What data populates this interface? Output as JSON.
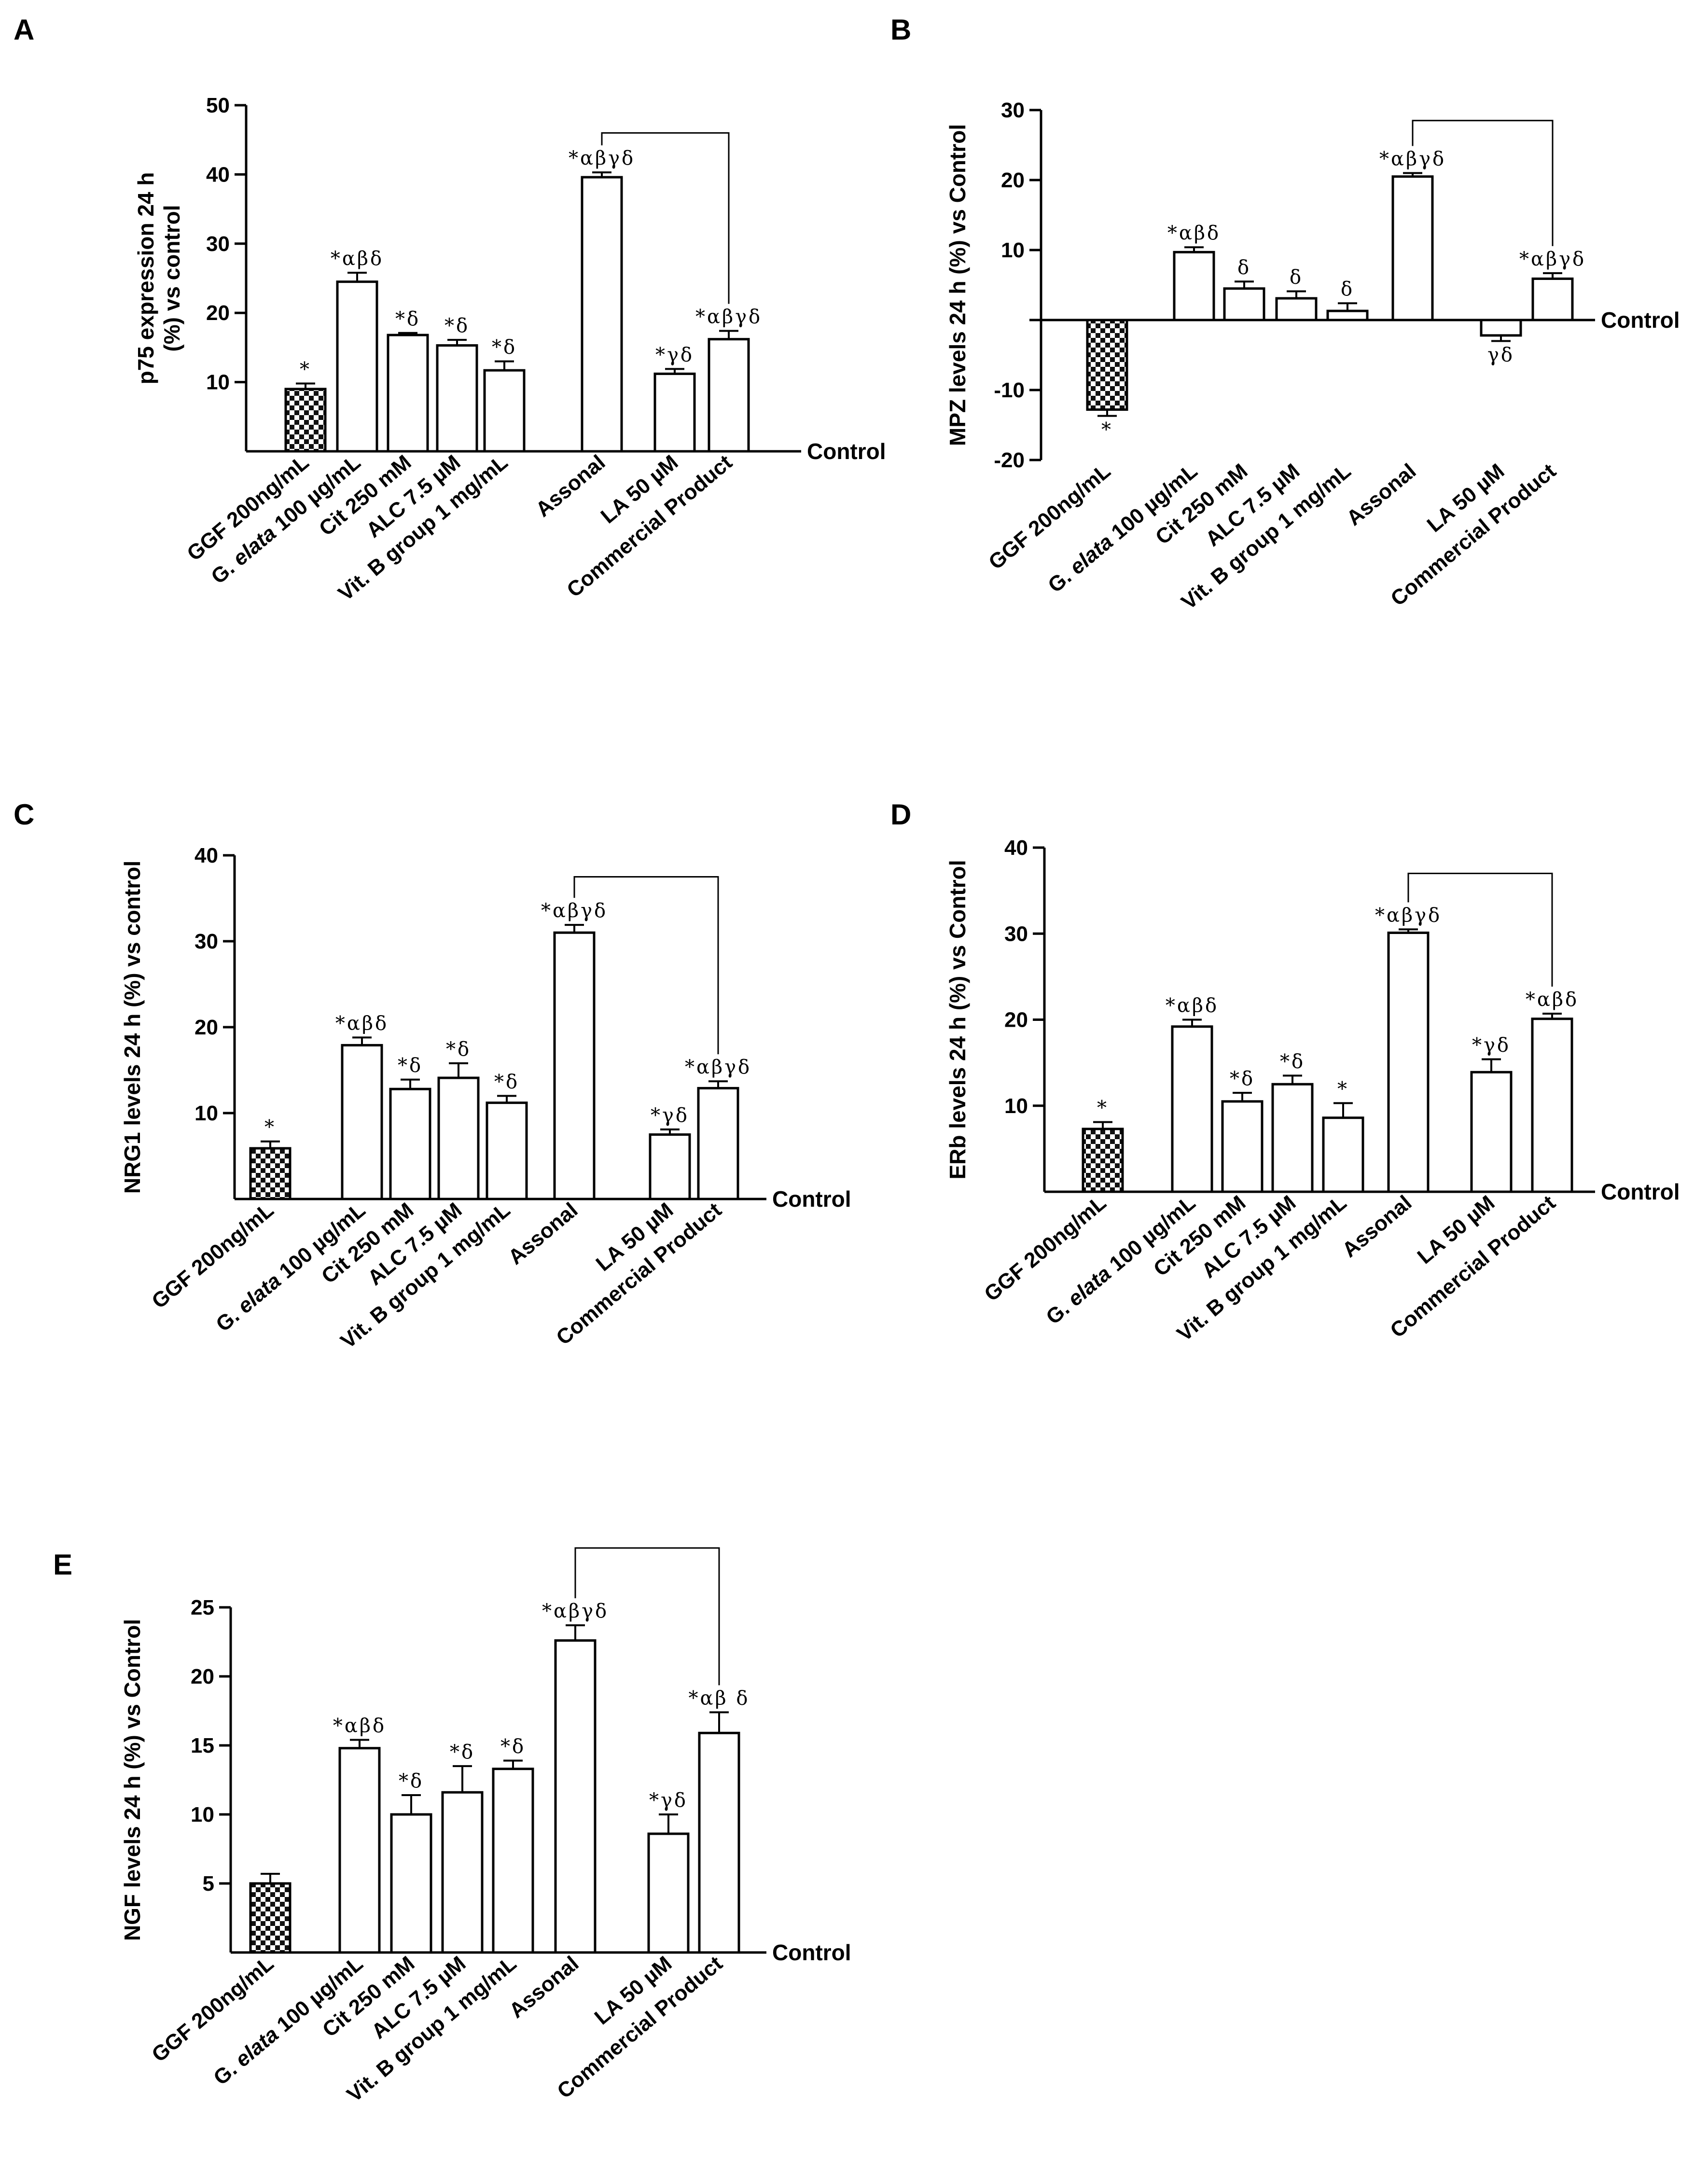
{
  "figure": {
    "colors": {
      "stroke": "#000000",
      "fill": "#ffffff",
      "checker_dark": "#111111",
      "checker_light": "#ffffff"
    },
    "baseline_label": "Control",
    "category_labels": [
      [
        "GGF 200ng/mL"
      ],
      [
        "G. ",
        "elata",
        " 100 µg/mL"
      ],
      [
        "Cit 250 mM"
      ],
      [
        "ALC 7.5 µM"
      ],
      [
        "Vit. B group 1 mg/mL"
      ],
      [
        "Assonal"
      ],
      [
        "LA 50 µM"
      ],
      [
        "Commercial Product"
      ]
    ]
  },
  "chart_data": [
    {
      "panel": "A",
      "type": "bar",
      "ylabel": [
        "p75 expression 24 h",
        "(%) vs control"
      ],
      "ylim": [
        0,
        50
      ],
      "yticks": [
        10,
        20,
        30,
        40,
        50
      ],
      "tick_labels": [
        "10",
        "20",
        "30",
        "40",
        "50"
      ],
      "categories": [
        "GGF 200ng/mL",
        "G. elata 100 µg/mL",
        "Cit 250 mM",
        "ALC 7.5 µM",
        "Vit. B group 1 mg/mL",
        "Assonal",
        "LA 50 µM",
        "Commercial Product"
      ],
      "values": [
        9,
        24.5,
        16.8,
        15.3,
        11.7,
        39.6,
        11.2,
        16.2
      ],
      "errors": [
        0.8,
        1.3,
        0.3,
        0.8,
        1.3,
        0.7,
        0.7,
        1.2
      ],
      "annotations": [
        "*",
        "*αβδ",
        "*δ",
        "*δ",
        "*δ",
        "*αβγδ",
        "*γδ",
        "*αβγδ"
      ],
      "bracket": [
        5,
        7
      ],
      "bracket_top": 46
    },
    {
      "panel": "B",
      "type": "bar",
      "ylabel": [
        "MPZ levels 24 h (%) vs Control"
      ],
      "ylim": [
        -20,
        30
      ],
      "yticks": [
        -20,
        -10,
        0,
        10,
        20,
        30
      ],
      "tick_labels": [
        "-20",
        "-10",
        "",
        "10",
        "20",
        "30"
      ],
      "categories": [
        "GGF 200ng/mL",
        "G. elata 100 µg/mL",
        "Cit 250 mM",
        "ALC 7.5 µM",
        "Vit. B group 1 mg/mL",
        "Assonal",
        "LA 50 µM",
        "Commercial Product"
      ],
      "values": [
        -12.8,
        9.7,
        4.5,
        3.1,
        1.3,
        20.5,
        -2.2,
        5.9
      ],
      "errors": [
        0.9,
        0.7,
        1.0,
        1.0,
        1.1,
        0.5,
        0.8,
        0.8
      ],
      "annotations": [
        "*",
        "*αβδ",
        "δ",
        "δ",
        "δ",
        "*αβγδ",
        "γδ",
        "*αβγδ"
      ],
      "bracket": [
        5,
        7
      ],
      "bracket_top": 28.5
    },
    {
      "panel": "C",
      "type": "bar",
      "ylabel": [
        "NRG1 levels 24 h (%) vs control"
      ],
      "ylim": [
        0,
        40
      ],
      "yticks": [
        10,
        20,
        30,
        40
      ],
      "tick_labels": [
        "10",
        "20",
        "30",
        "40"
      ],
      "categories": [
        "GGF 200ng/mL",
        "G. elata 100 µg/mL",
        "Cit 250 mM",
        "ALC 7.5 µM",
        "Vit. B group 1 mg/mL",
        "Assonal",
        "LA 50 µM",
        "Commercial Product"
      ],
      "values": [
        5.9,
        17.9,
        12.8,
        14.1,
        11.2,
        31,
        7.5,
        12.9
      ],
      "errors": [
        0.8,
        0.9,
        1.1,
        1.7,
        0.8,
        0.9,
        0.6,
        0.8
      ],
      "annotations": [
        "*",
        "*αβδ",
        "*δ",
        "*δ",
        "*δ",
        "*αβγδ",
        "*γδ",
        "*αβγδ"
      ],
      "bracket": [
        5,
        7
      ],
      "bracket_top": 37.5
    },
    {
      "panel": "D",
      "type": "bar",
      "ylabel": [
        "ERb levels 24 h (%) vs Control"
      ],
      "ylim": [
        0,
        40
      ],
      "yticks": [
        10,
        20,
        30,
        40
      ],
      "tick_labels": [
        "10",
        "20",
        "30",
        "40"
      ],
      "categories": [
        "GGF 200ng/mL",
        "G. elata 100 µg/mL",
        "Cit 250 mM",
        "ALC 7.5 µM",
        "Vit. B group 1 mg/mL",
        "Assonal",
        "LA 50 µM",
        "Commercial Product"
      ],
      "values": [
        7.3,
        19.2,
        10.5,
        12.5,
        8.6,
        30.1,
        13.9,
        20.1
      ],
      "errors": [
        0.8,
        0.8,
        1.0,
        1.0,
        1.7,
        0.4,
        1.5,
        0.6
      ],
      "annotations": [
        "*",
        "*αβδ",
        "*δ",
        "*δ",
        "*",
        "*αβγδ",
        "*γδ",
        "*αβδ"
      ],
      "bracket": [
        5,
        7
      ],
      "bracket_top": 37
    },
    {
      "panel": "E",
      "type": "bar",
      "ylabel": [
        "NGF levels 24 h (%) vs Control"
      ],
      "ylim": [
        0,
        25
      ],
      "yticks": [
        5,
        10,
        15,
        20,
        25
      ],
      "tick_labels": [
        "5",
        "10",
        "15",
        "20",
        "25"
      ],
      "categories": [
        "GGF 200ng/mL",
        "G. elata 100 µg/mL",
        "Cit 250 mM",
        "ALC 7.5 µM",
        "Vit. B group 1 mg/mL",
        "Assonal",
        "LA 50 µM",
        "Commercial Product"
      ],
      "values": [
        5,
        14.8,
        10,
        11.6,
        13.3,
        22.6,
        8.6,
        15.9
      ],
      "errors": [
        0.7,
        0.6,
        1.4,
        1.9,
        0.6,
        1.1,
        1.4,
        1.5
      ],
      "annotations": [
        "",
        "*αβδ",
        "*δ",
        "*δ",
        "*δ",
        "*αβγδ",
        "*γδ",
        "*αβ δ"
      ],
      "bracket": [
        5,
        7
      ],
      "bracket_top": 29.3
    }
  ]
}
